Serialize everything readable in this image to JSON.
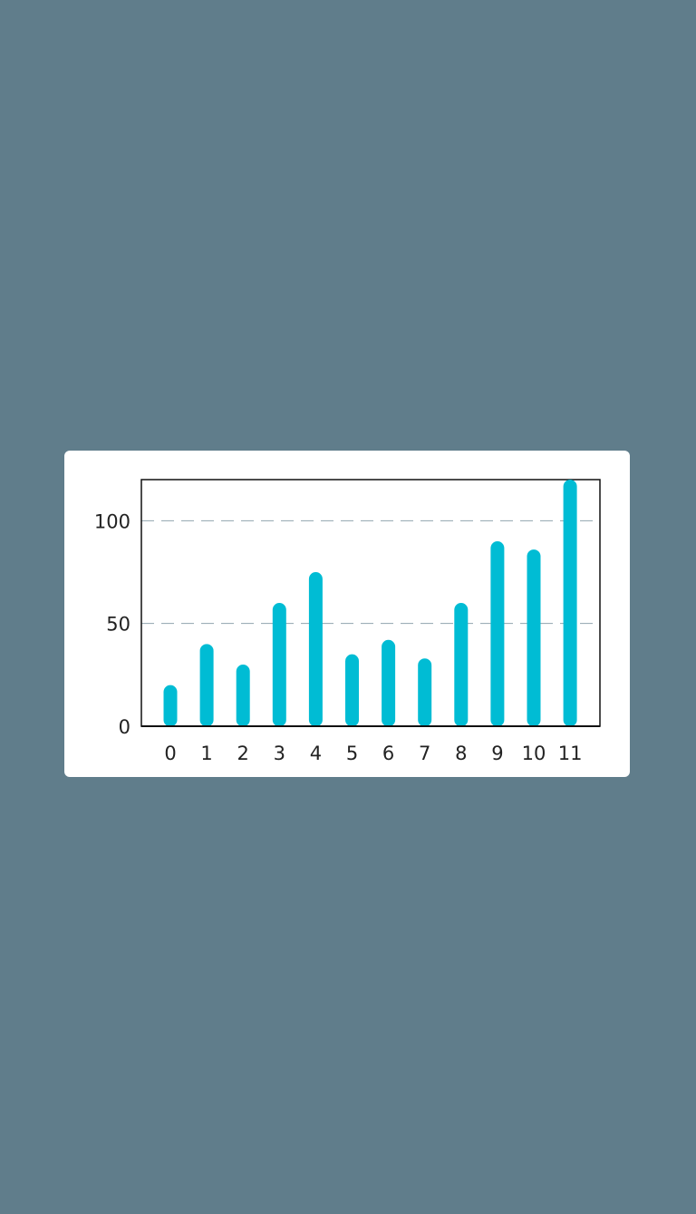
{
  "chart_data": {
    "type": "bar",
    "title": "",
    "xlabel": "",
    "ylabel": "",
    "categories": [
      "0",
      "1",
      "2",
      "3",
      "4",
      "5",
      "6",
      "7",
      "8",
      "9",
      "10",
      "11"
    ],
    "values": [
      20,
      40,
      30,
      60,
      75,
      35,
      42,
      33,
      60,
      90,
      86,
      120
    ],
    "ylim": [
      0,
      120
    ],
    "yticks": [
      0,
      50,
      100
    ],
    "ytick_labels": [
      "0",
      "50",
      "100"
    ],
    "grid": "horizontal dashed",
    "legend": "none",
    "colors": {
      "bar": "#00bcd4",
      "grid": "#90a4ae",
      "background": "#607d8b",
      "card": "#ffffff"
    }
  }
}
